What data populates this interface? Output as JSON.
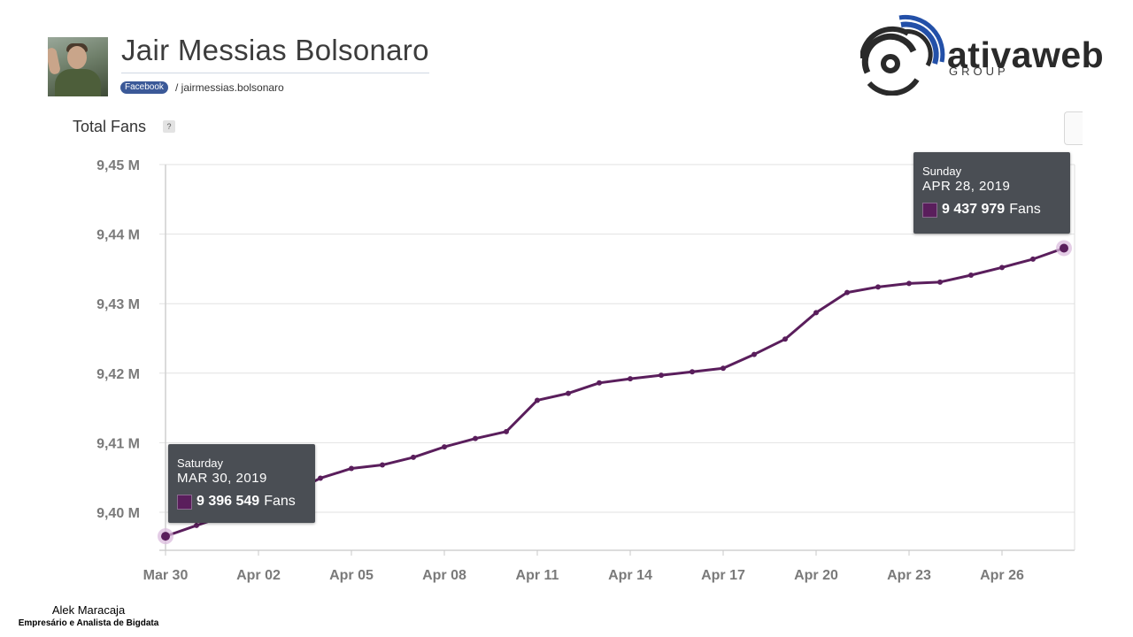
{
  "header": {
    "profile_name": "Jair Messias Bolsonaro",
    "network_badge": "Facebook",
    "handle": "/ jairmessias.bolsonaro"
  },
  "brand": {
    "name": "ativaweb",
    "sub": "GROUP"
  },
  "section": {
    "title": "Total Fans",
    "help": "?"
  },
  "colors": {
    "series": "#5a1e5c",
    "tooltip_bg": "#4a4e54",
    "grid": "#e2e2e2",
    "badge": "#3b5998"
  },
  "icons": {
    "avatar": "profile-photo",
    "help": "question-icon",
    "brand": "wifi-arcs-logo"
  },
  "tooltips": {
    "start": {
      "day": "Saturday",
      "date": "MAR 30, 2019",
      "value": "9 396 549",
      "unit": "Fans"
    },
    "end": {
      "day": "Sunday",
      "date": "APR 28, 2019",
      "value": "9 437 979",
      "unit": "Fans"
    }
  },
  "author": {
    "name": "Alek Maracaja",
    "role": "Empresário e Analista de Bigdata"
  },
  "chart_data": {
    "type": "line",
    "title": "Total Fans",
    "x": [
      "2019-03-30",
      "2019-03-31",
      "2019-04-01",
      "2019-04-02",
      "2019-04-03",
      "2019-04-04",
      "2019-04-05",
      "2019-04-06",
      "2019-04-07",
      "2019-04-08",
      "2019-04-09",
      "2019-04-10",
      "2019-04-11",
      "2019-04-12",
      "2019-04-13",
      "2019-04-14",
      "2019-04-15",
      "2019-04-16",
      "2019-04-17",
      "2019-04-18",
      "2019-04-19",
      "2019-04-20",
      "2019-04-21",
      "2019-04-22",
      "2019-04-23",
      "2019-04-24",
      "2019-04-25",
      "2019-04-26",
      "2019-04-27",
      "2019-04-28"
    ],
    "series": [
      {
        "values": [
          9396549,
          9398100,
          9399600,
          9401100,
          9402700,
          9404900,
          9406300,
          9406800,
          9407900,
          9409400,
          9410600,
          9411600,
          9416100,
          9417100,
          9418600,
          9419200,
          9419700,
          9420200,
          9420700,
          9422700,
          9424900,
          9428700,
          9431600,
          9432400,
          9432900,
          9433100,
          9434100,
          9435200,
          9436400,
          9437979
        ],
        "color": "#5a1e5c"
      }
    ],
    "xticks": [
      "Mar 30",
      "Apr 02",
      "Apr 05",
      "Apr 08",
      "Apr 11",
      "Apr 14",
      "Apr 17",
      "Apr 20",
      "Apr 23",
      "Apr 26"
    ],
    "yticks": [
      "9,40 M",
      "9,41 M",
      "9,42 M",
      "9,43 M",
      "9,44 M",
      "9,45 M"
    ],
    "ytick_values": [
      9400000,
      9410000,
      9420000,
      9430000,
      9440000,
      9450000
    ],
    "ylim": [
      9395000,
      9450000
    ],
    "grid": true,
    "legend": "none"
  }
}
